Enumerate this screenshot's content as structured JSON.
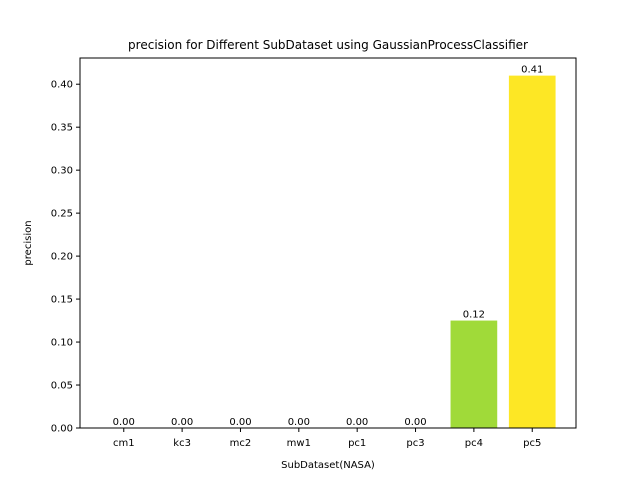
{
  "chart_data": {
    "type": "bar",
    "title": "precision for Different SubDataset using GaussianProcessClassifier",
    "xlabel": "SubDataset(NASA)",
    "ylabel": "precision",
    "categories": [
      "cm1",
      "kc3",
      "mc2",
      "mw1",
      "pc1",
      "pc3",
      "pc4",
      "pc5"
    ],
    "values": [
      0.0,
      0.0,
      0.0,
      0.0,
      0.0,
      0.0,
      0.125,
      0.41
    ],
    "value_labels": [
      "0.00",
      "0.00",
      "0.00",
      "0.00",
      "0.00",
      "0.00",
      "0.12",
      "0.41"
    ],
    "bar_colors": [
      "#440154",
      "#46327e",
      "#365c8d",
      "#277f8e",
      "#1fa187",
      "#4ac16d",
      "#a0da39",
      "#fde725"
    ],
    "ylim": [
      0,
      0.4305
    ],
    "yticks": [
      0.0,
      0.05,
      0.1,
      0.15,
      0.2,
      0.25,
      0.3,
      0.35,
      0.4
    ],
    "ytick_labels": [
      "0.00",
      "0.05",
      "0.10",
      "0.15",
      "0.20",
      "0.25",
      "0.30",
      "0.35",
      "0.40"
    ],
    "grid": false,
    "legend": "none"
  }
}
